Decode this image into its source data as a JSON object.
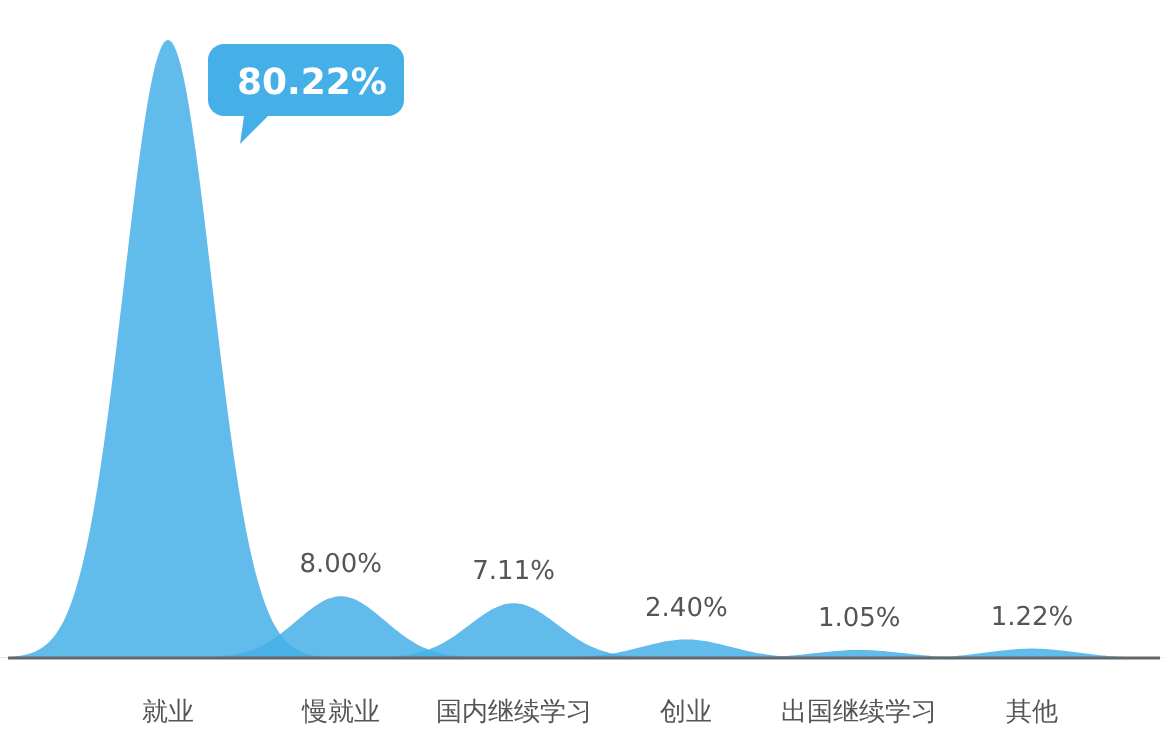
{
  "chart_data": {
    "type": "other",
    "categories": [
      "就业",
      "慢就业",
      "国内继续学习",
      "创业",
      "出国继续学习",
      "其他"
    ],
    "values": [
      80.22,
      8.0,
      7.11,
      2.4,
      1.05,
      1.22
    ],
    "value_labels": [
      "80.22%",
      "8.00%",
      "7.11%",
      "2.40%",
      "1.05%",
      "1.22%"
    ],
    "color": "#45b0e8"
  }
}
